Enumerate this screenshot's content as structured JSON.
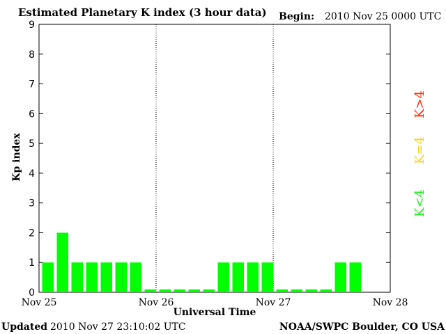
{
  "header": {
    "title": "Estimated Planetary K index (3 hour data)",
    "begin_label": "Begin:",
    "begin_value": "2010 Nov 25 0000 UTC"
  },
  "footer": {
    "updated_label": "Updated",
    "updated_value": "2010 Nov 27 23:10:02 UTC",
    "source": "NOAA/SWPC Boulder, CO USA"
  },
  "legend": {
    "k_gt4": "K>4",
    "k_eq4": "K=4",
    "k_lt4": "K<4",
    "colors": {
      "k_gt4": "#ff2a00",
      "k_eq4": "#ffd21a",
      "k_lt4": "#22ee22"
    }
  },
  "chart_data": {
    "type": "bar",
    "title": "Estimated Planetary K index (3 hour data)",
    "xlabel": "Universal Time",
    "ylabel": "Kp index",
    "ylim": [
      0,
      9
    ],
    "yticks": [
      "0",
      "1",
      "2",
      "3",
      "4",
      "5",
      "6",
      "7",
      "8",
      "9"
    ],
    "xticks": [
      "Nov 25",
      "Nov 26",
      "Nov 27",
      "Nov 28"
    ],
    "bar_color": "#00ff00",
    "values": [
      1,
      2,
      1,
      1,
      1,
      1,
      1,
      0,
      0,
      0,
      0,
      0,
      1,
      1,
      1,
      1,
      0,
      0,
      0,
      0,
      1,
      1
    ]
  }
}
